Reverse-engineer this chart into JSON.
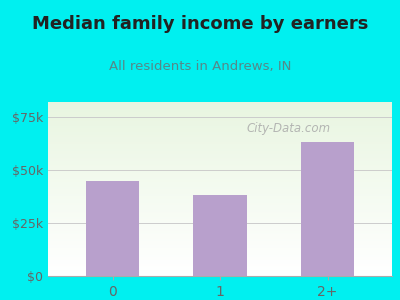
{
  "title": "Median family income by earners",
  "subtitle": "All residents in Andrews, IN",
  "categories": [
    "0",
    "1",
    "2+"
  ],
  "values": [
    45000,
    38000,
    63000
  ],
  "bar_color": "#b8a0cc",
  "background_color": "#00f0f0",
  "yticks": [
    0,
    25000,
    50000,
    75000
  ],
  "ytick_labels": [
    "$0",
    "$25k",
    "$50k",
    "$75k"
  ],
  "ylim": [
    0,
    82000
  ],
  "title_fontsize": 13,
  "subtitle_fontsize": 9.5,
  "title_color": "#222222",
  "subtitle_color": "#558888",
  "tick_color": "#666666",
  "watermark_text": "City-Data.com",
  "watermark_color": "#aaaaaa"
}
